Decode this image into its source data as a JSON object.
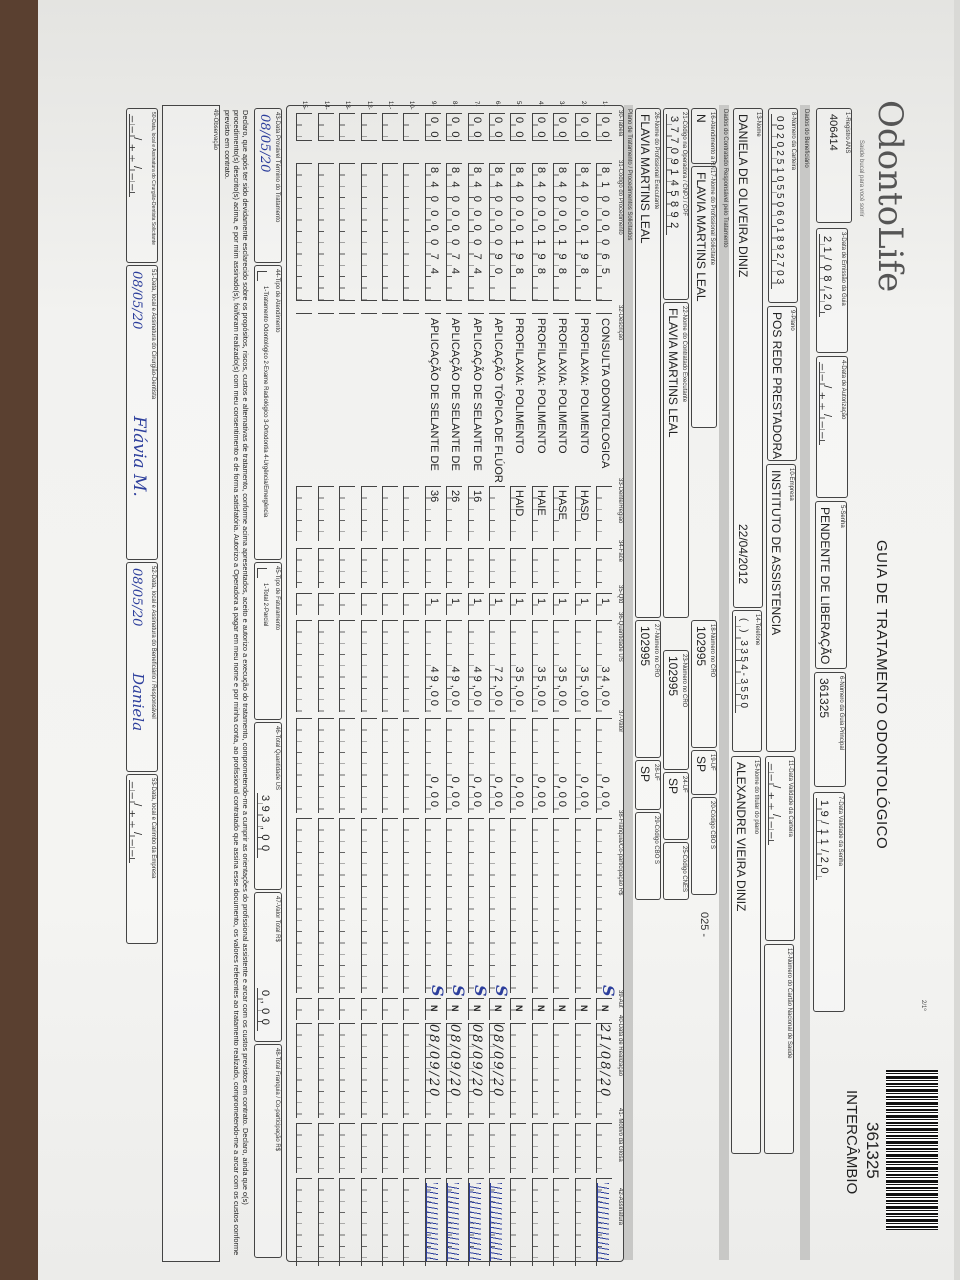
{
  "header": {
    "logo": "OdontoLife",
    "logo_tagline": "Saúde bucal para você sorrir",
    "title": "GUIA DE TRATAMENTO ODONTOLÓGICO",
    "guide_number": "361325",
    "guide_type": "INTERCÂMBIO",
    "page_mark": "2/1º"
  },
  "fields": {
    "f1": {
      "label": "1-Registro ANS",
      "value": "406414"
    },
    "f3": {
      "label": "3-Data de Emissão da Guia",
      "value": "21/08/20"
    },
    "f4": {
      "label": "4-Data de Autorização",
      "value": "__/__/__"
    },
    "f5": {
      "label": "5-Senha",
      "value": "PENDENTE DE LIBERAÇÃO"
    },
    "f6": {
      "label": "6-Número da Guia Principal",
      "value": "361325"
    },
    "f7": {
      "label": "7-Data Validade da Senha",
      "value": "19/11/20"
    },
    "band_benef": "Dados do Beneficiário",
    "f8": {
      "label": "8-Número da Carteira",
      "value": "00202510550601892703"
    },
    "f9": {
      "label": "9-Plano",
      "value": "POS REDE PRESTADORA"
    },
    "f10": {
      "label": "10-Empresa",
      "value": "INSTITUTO DE ASSISTENCIA"
    },
    "f11": {
      "label": "11-Data Validade da Carteira",
      "value": "__/__/__"
    },
    "f12": {
      "label": "12-Número do Cartão Nacional de Saúde",
      "value": ""
    },
    "f13": {
      "label": "13-Nome",
      "value": "DANIELA DE OLIVEIRA DINIZ",
      "extra": "22/04/2012"
    },
    "f14": {
      "label": "14-Telefone",
      "value": "(   ) 3354-3550"
    },
    "f15": {
      "label": "15-Nome do titular do plano",
      "value": "ALEXANDRE VIEIRA DINIZ"
    },
    "band_contrat": "Dados do Contratado Responsável pelo Tratamento",
    "f16": {
      "label": "16-Atendimento a RN",
      "value": "N"
    },
    "f17": {
      "label": "17-Nome do Profissional Solicitante",
      "value": "FLAVIA MARTINS LEAL"
    },
    "f18": {
      "label": "18-Número no CRO",
      "value": "102995"
    },
    "f19": {
      "label": "19-UF",
      "value": "SP"
    },
    "f20": {
      "label": "20-Código CBO S",
      "value": ""
    },
    "f20b": "025 -",
    "f21": {
      "label": "21-Código na Operadora / CNPJ / CPF",
      "value": "37709145892"
    },
    "f22": {
      "label": "22-Nome do Contratado Executante",
      "value": "FLAVIA MARTINS LEAL"
    },
    "f23": {
      "label": "23-Número no CRO",
      "value": "102995"
    },
    "f24": {
      "label": "24-UF",
      "value": "SP"
    },
    "f25": {
      "label": "25-Código CNES",
      "value": ""
    },
    "f26": {
      "label": "26-Nome do Profissional Executante",
      "value": "FLAVIA MARTINS LEAL"
    },
    "f27": {
      "label": "27-Número no CRO",
      "value": "102995"
    },
    "f28": {
      "label": "28-UF",
      "value": "SP"
    },
    "f29": {
      "label": "29-Código CBO S",
      "value": ""
    },
    "band_plano": "Plano de Tratamento / Procedimentos Solicitados"
  },
  "columns": [
    "30-Tabela",
    "31-Código do Procedimento",
    "32-Descrição",
    "33-Dente/Região",
    "34-Face",
    "35-Qtd",
    "36-Quantidade US",
    "37-Valor",
    "38-Franquia/Co-participação R$",
    "39-Aut",
    "40-Data de Realização",
    "41- Motivo da Glosa",
    "42-Assinatura"
  ],
  "procedures": [
    {
      "n": "1-",
      "tabela": "00",
      "codigo": "81000065",
      "descricao": "CONSULTA ODONTOLOGICA",
      "dente": "",
      "qtd": "1",
      "us": "34,00",
      "valor": "0,00",
      "aut": "N",
      "aut_hw": "S",
      "data": "21/08/20",
      "assinado": true
    },
    {
      "n": "2-",
      "tabela": "00",
      "codigo": "84000198",
      "descricao": "PROFILAXIA: POLIMENTO",
      "dente": "HASD",
      "qtd": "1",
      "us": "35,00",
      "valor": "0,00",
      "aut": "N",
      "aut_hw": "",
      "data": "",
      "assinado": false
    },
    {
      "n": "3-",
      "tabela": "00",
      "codigo": "84000198",
      "descricao": "PROFILAXIA: POLIMENTO",
      "dente": "HASE",
      "qtd": "1",
      "us": "35,00",
      "valor": "0,00",
      "aut": "N",
      "aut_hw": "",
      "data": "",
      "assinado": false
    },
    {
      "n": "4-",
      "tabela": "00",
      "codigo": "84000198",
      "descricao": "PROFILAXIA: POLIMENTO",
      "dente": "HAIE",
      "qtd": "1",
      "us": "35,00",
      "valor": "0,00",
      "aut": "N",
      "aut_hw": "",
      "data": "",
      "assinado": false
    },
    {
      "n": "5-",
      "tabela": "00",
      "codigo": "84000198",
      "descricao": "PROFILAXIA: POLIMENTO",
      "dente": "HAID",
      "qtd": "1",
      "us": "35,00",
      "valor": "0,00",
      "aut": "N",
      "aut_hw": "",
      "data": "",
      "assinado": false
    },
    {
      "n": "6-",
      "tabela": "00",
      "codigo": "84000090",
      "descricao": "APLICAÇÃO TÓPICA DE FLÚOR",
      "dente": "",
      "qtd": "1",
      "us": "72,00",
      "valor": "0,00",
      "aut": "N",
      "aut_hw": "S",
      "data": "08/09/20",
      "assinado": true
    },
    {
      "n": "7-",
      "tabela": "00",
      "codigo": "84000074",
      "descricao": "APLICAÇÃO DE SELANTE DE",
      "dente": "16",
      "qtd": "1",
      "us": "49,00",
      "valor": "0,00",
      "aut": "N",
      "aut_hw": "S",
      "data": "08/09/20",
      "assinado": true
    },
    {
      "n": "8-",
      "tabela": "00",
      "codigo": "84000074",
      "descricao": "APLICAÇÃO DE SELANTE DE",
      "dente": "26",
      "qtd": "1",
      "us": "49,00",
      "valor": "0,00",
      "aut": "N",
      "aut_hw": "S",
      "data": "08/09/20",
      "assinado": true
    },
    {
      "n": "9-",
      "tabela": "00",
      "codigo": "84000074",
      "descricao": "APLICAÇÃO DE SELANTE DE",
      "dente": "36",
      "qtd": "1",
      "us": "49,00",
      "valor": "0,00",
      "aut": "N",
      "aut_hw": "S",
      "data": "08/09/20",
      "assinado": true
    },
    {
      "n": "10-"
    },
    {
      "n": "11-"
    },
    {
      "n": "12-"
    },
    {
      "n": "13-"
    },
    {
      "n": "14-"
    },
    {
      "n": "15-"
    }
  ],
  "footer": {
    "f43": {
      "label": "43-Data Provável Término do Tratamento",
      "value": "08/05/20"
    },
    "f44": {
      "label": "44-Tipo de Atendimento",
      "value": "1-Tratamento Odontológico  2-Exame Radiológico  3-Ortodontia  4-Urgência/Emergência"
    },
    "f45": {
      "label": "45-Tipo de Faturamento",
      "value": "1-Total  2-Parcial"
    },
    "f46": {
      "label": "46-Total Quantidade US",
      "value": "393,00"
    },
    "f47": {
      "label": "47-Valor Total R$",
      "value": "0,00"
    },
    "f48": {
      "label": "48-Total Franquia / Co-participação R$",
      "value": ""
    },
    "declaration": "Declaro, que após ter sido devidamente esclarecido sobre os propósitos, riscos, custos e alternativas de tratamento, conforme acima apresentados, aceito e autorizo a execução do tratamento, comprometendo-me a cumprir as orientações do profissional assistente e arcar com os custos previstos em contrato. Declaro, ainda que o(s) procedimento(s) descrito(s) acima, e por mim assinado(s), foi/foram realizado(s) com meu consentimento e de forma satisfatória. Autorizo a Operadora a pagar em meu nome e por minha conta, ao profissional contratado que assina esse documento, os valores referentes ao tratamento realizado, comprometendo-me a arcar com os custos conforme previsto em contrato.",
    "f49": {
      "label": "49-Observação",
      "value": ""
    },
    "f50": {
      "label": "50-Data, local e Assinatura do Cirurgião-Dentista Solicitante",
      "value": "__/__/__"
    },
    "f51": {
      "label": "51-Data, local e Assinatura do Cirurgião-Dentista",
      "value": "08/05/20",
      "signature": "Flávia M."
    },
    "f52": {
      "label": "52-Data, local e Assinatura do Beneficiário / Responsável",
      "value": "08/05/20",
      "signature": "Daniela"
    },
    "f53": {
      "label": "53-Data, local e Carimbo da Empresa",
      "value": "__/__/__"
    }
  },
  "colors": {
    "ink": "#222222",
    "handwriting": "#2d3f9c",
    "band": "#c8c8c6",
    "paper": "#f3f3f1"
  }
}
